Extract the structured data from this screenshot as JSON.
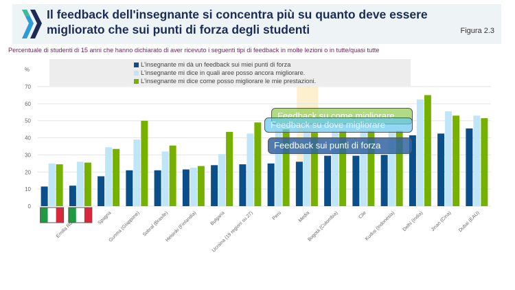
{
  "header": {
    "title": "Il feedback dell'insegnante si concentra più su quanto deve essere migliorato che sui punti di forza degli studenti",
    "figure_label": "Figura 2.3",
    "subtitle": "Percentuale di studenti di 15 anni che hanno dichiarato di aver ricevuto i seguenti tipi di feedback in molte lezioni o in tutte/quasi tutte"
  },
  "callouts": {
    "come": "Feedback su come migliorare",
    "dove": "Feedback su dove migliorare",
    "forza": "Feedback sui punti di forza"
  },
  "chart_data": {
    "type": "bar",
    "title": "Percentuale di studenti di 15 anni che hanno dichiarato di aver ricevuto i seguenti tipi di feedback in molte lezioni o in tutte/quasi tutte",
    "ylabel": "%",
    "xlabel": "",
    "ylim": [
      0,
      70
    ],
    "yticks": [
      0,
      10,
      20,
      30,
      40,
      50,
      60,
      70
    ],
    "grid": true,
    "legend_position": "top",
    "highlight_category": "Media",
    "flag_categories": [
      "Torino",
      "Emilia Romagna"
    ],
    "categories": [
      "Torino",
      "Emilia Romagna",
      "Spagna",
      "Gunma (Giappone)",
      "Sobral (Brasile)",
      "Helsinki (Finlandia)",
      "Bulgaria",
      "Ucraina (19 regioni su 27)",
      "Perù",
      "Media",
      "Bogotà (Colombia)",
      "Cile",
      "Kudus (Indonesia)",
      "Delhi (India)",
      "Jinan (Cina)",
      "Dubai (EAU)"
    ],
    "series": [
      {
        "name": "L'insegnante mi dà un feedback sui miei punti di forza",
        "color": "#0b4f8a",
        "values": [
          11.5,
          12,
          17.5,
          21,
          21,
          21.5,
          24,
          24.5,
          25,
          26,
          29.5,
          29.5,
          30,
          41.5,
          42.5,
          45.5
        ]
      },
      {
        "name": "L'insegnante mi dice in quali aree posso ancora migliorare.",
        "color": "#bfe6f7",
        "values": [
          25,
          26,
          34.5,
          39,
          32,
          22.5,
          30.5,
          42.5,
          44,
          44,
          44,
          44,
          44,
          62.5,
          55.5,
          53
        ]
      },
      {
        "name": "L'insegnante mi dice come posso migliorare le mie prestazioni.",
        "color": "#76b100",
        "values": [
          24.5,
          25.5,
          33.5,
          50,
          35.5,
          23.5,
          43.5,
          49,
          45,
          43,
          44,
          44,
          44,
          65,
          53,
          51.5
        ]
      }
    ]
  }
}
